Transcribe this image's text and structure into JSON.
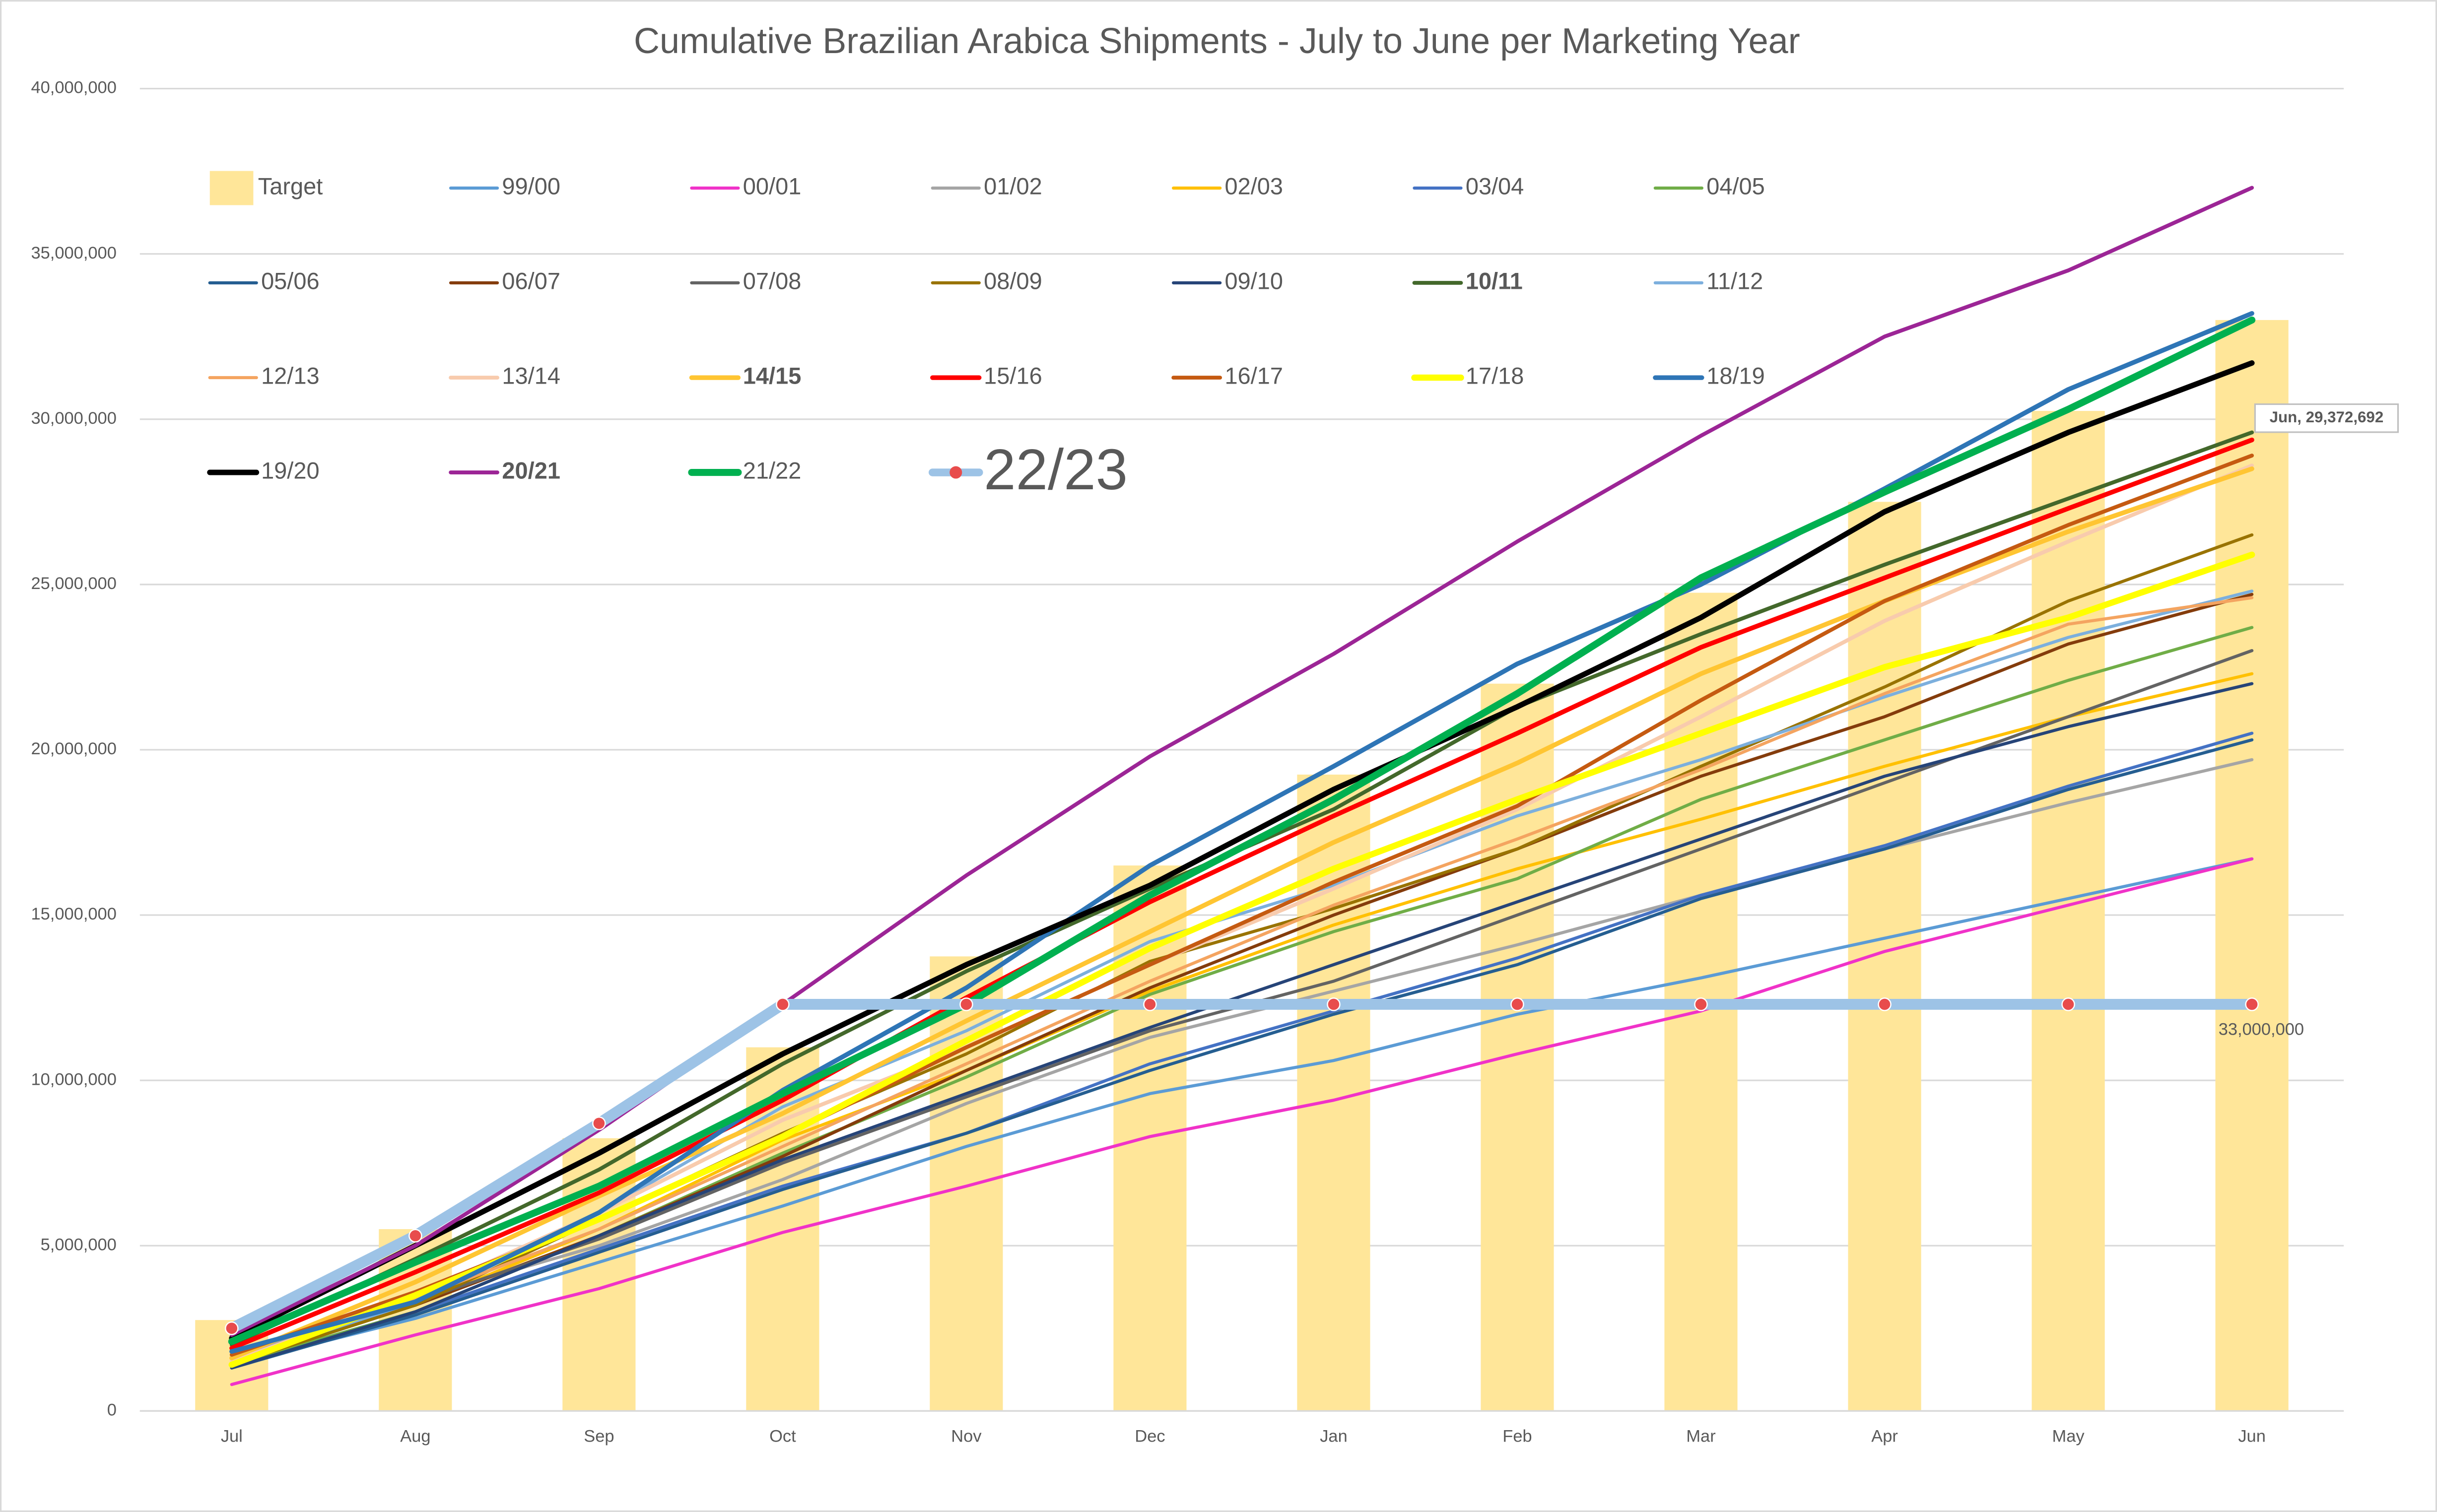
{
  "chart_data": {
    "type": "line",
    "title": "Cumulative Brazilian Arabica Shipments - July to June per Marketing Year",
    "categories": [
      "Jul",
      "Aug",
      "Sep",
      "Oct",
      "Nov",
      "Dec",
      "Jan",
      "Feb",
      "Mar",
      "Apr",
      "May",
      "Jun"
    ],
    "ylim": [
      0,
      40000000
    ],
    "yticks": [
      0,
      {
        "value": 5000000,
        "label": "5,000,000"
      },
      {
        "value": 10000000,
        "label": "10,000,000"
      },
      {
        "value": 15000000,
        "label": "15,000,000"
      },
      {
        "value": 20000000,
        "label": "20,000,000"
      },
      {
        "value": 25000000,
        "label": "25,000,000"
      },
      {
        "value": 30000000,
        "label": "30,000,000"
      },
      {
        "value": 35000000,
        "label": "35,000,000"
      },
      {
        "value": 40000000,
        "label": "40,000,000"
      }
    ],
    "grid": true,
    "bars": {
      "name": "Target",
      "color": "#ffe699",
      "values": [
        2750000,
        5500000,
        8250000,
        11000000,
        13750000,
        16500000,
        19250000,
        22000000,
        24750000,
        27500000,
        30250000,
        33000000
      ],
      "value_labels": [
        null,
        null,
        null,
        null,
        null,
        null,
        null,
        null,
        null,
        null,
        null,
        "33,000,000"
      ]
    },
    "series": [
      {
        "name": "99/00",
        "color": "#5b9bd5",
        "width": 2,
        "values": [
          1400000,
          2800000,
          4500000,
          6200000,
          8000000,
          9600000,
          10600000,
          12000000,
          13100000,
          14300000,
          15500000,
          16700000
        ]
      },
      {
        "name": "00/01",
        "color": "#f032c8",
        "width": 2,
        "values": [
          800000,
          2300000,
          3700000,
          5400000,
          6800000,
          8300000,
          9400000,
          10800000,
          12100000,
          13900000,
          15300000,
          16700000
        ]
      },
      {
        "name": "01/02",
        "color": "#a5a5a5",
        "width": 2,
        "values": [
          1600000,
          3400000,
          5000000,
          7000000,
          9300000,
          11300000,
          12700000,
          14100000,
          15600000,
          17000000,
          18400000,
          19700000
        ]
      },
      {
        "name": "02/03",
        "color": "#ffc000",
        "width": 2,
        "values": [
          1500000,
          3200000,
          5500000,
          8200000,
          10300000,
          12700000,
          14700000,
          16400000,
          17900000,
          19500000,
          21000000,
          22300000
        ]
      },
      {
        "name": "03/04",
        "color": "#4472c4",
        "width": 2,
        "values": [
          1400000,
          3000000,
          4900000,
          6800000,
          8400000,
          10500000,
          12100000,
          13700000,
          15600000,
          17100000,
          18900000,
          20500000
        ]
      },
      {
        "name": "04/05",
        "color": "#70ad47",
        "width": 2,
        "values": [
          1400000,
          3000000,
          5300000,
          7800000,
          10100000,
          12600000,
          14500000,
          16100000,
          18500000,
          20300000,
          22100000,
          23700000
        ]
      },
      {
        "name": "05/06",
        "color": "#255e91",
        "width": 2,
        "values": [
          1300000,
          2900000,
          4800000,
          6700000,
          8400000,
          10300000,
          12000000,
          13500000,
          15500000,
          17000000,
          18800000,
          20300000
        ]
      },
      {
        "name": "06/07",
        "color": "#843c0c",
        "width": 2,
        "values": [
          1500000,
          3200000,
          5300000,
          7700000,
          10300000,
          12800000,
          15000000,
          17000000,
          19200000,
          21000000,
          23200000,
          24700000
        ]
      },
      {
        "name": "07/08",
        "color": "#636363",
        "width": 2,
        "values": [
          1500000,
          3300000,
          5200000,
          7500000,
          9500000,
          11500000,
          13000000,
          15000000,
          17000000,
          19000000,
          21000000,
          23000000
        ]
      },
      {
        "name": "08/09",
        "color": "#997300",
        "width": 2,
        "values": [
          1400000,
          3200000,
          5800000,
          8400000,
          10800000,
          13600000,
          15200000,
          17000000,
          19500000,
          21900000,
          24500000,
          26500000
        ]
      },
      {
        "name": "09/10",
        "color": "#264478",
        "width": 2,
        "values": [
          1300000,
          3000000,
          5300000,
          7600000,
          9600000,
          11600000,
          13500000,
          15400000,
          17300000,
          19200000,
          20700000,
          22000000
        ]
      },
      {
        "name": "10/11",
        "color": "#43682b",
        "width": 2.5,
        "bold": true,
        "values": [
          2000000,
          4600000,
          7300000,
          10500000,
          13300000,
          15800000,
          18200000,
          21300000,
          23500000,
          25600000,
          27600000,
          29600000
        ]
      },
      {
        "name": "11/12",
        "color": "#7cafdd",
        "width": 2,
        "values": [
          1500000,
          3300000,
          6000000,
          9200000,
          11500000,
          14200000,
          15900000,
          18000000,
          19700000,
          21600000,
          23400000,
          24800000
        ]
      },
      {
        "name": "12/13",
        "color": "#f4a460",
        "width": 2,
        "values": [
          1500000,
          3400000,
          5500000,
          8000000,
          10500000,
          13000000,
          15300000,
          17300000,
          19400000,
          21700000,
          23800000,
          24600000
        ]
      },
      {
        "name": "13/14",
        "color": "#f8cbad",
        "width": 2.5,
        "values": [
          1500000,
          3500000,
          6000000,
          8800000,
          11000000,
          13500000,
          15800000,
          18200000,
          21000000,
          23900000,
          26300000,
          28600000
        ]
      },
      {
        "name": "14/15",
        "color": "#ffc532",
        "width": 3,
        "bold": true,
        "values": [
          1600000,
          3900000,
          6500000,
          9000000,
          11800000,
          14500000,
          17200000,
          19600000,
          22300000,
          24500000,
          26600000,
          28500000
        ]
      },
      {
        "name": "15/16",
        "color": "#ff0000",
        "width": 3,
        "values": [
          1900000,
          4200000,
          6600000,
          9400000,
          12500000,
          15400000,
          18000000,
          20500000,
          23100000,
          25200000,
          27300000,
          29372692
        ],
        "value_labels": [
          null,
          null,
          null,
          null,
          null,
          null,
          null,
          null,
          null,
          null,
          null,
          "Jun, 29,372,692"
        ]
      },
      {
        "name": "16/17",
        "color": "#c55a11",
        "width": 2.5,
        "values": [
          1700000,
          3600000,
          5800000,
          8300000,
          11000000,
          13500000,
          16000000,
          18300000,
          21500000,
          24500000,
          26800000,
          28900000
        ]
      },
      {
        "name": "17/18",
        "color": "#ffff00",
        "width": 4,
        "values": [
          1400000,
          3500000,
          5800000,
          8300000,
          11200000,
          14000000,
          16400000,
          18500000,
          20500000,
          22500000,
          24000000,
          25900000
        ]
      },
      {
        "name": "18/19",
        "color": "#2e75b6",
        "width": 3,
        "values": [
          1800000,
          3300000,
          6000000,
          9700000,
          12800000,
          16500000,
          19500000,
          22600000,
          25000000,
          27900000,
          30900000,
          33200000
        ]
      },
      {
        "name": "19/20",
        "color": "#000000",
        "width": 3.5,
        "values": [
          2200000,
          5000000,
          7800000,
          10800000,
          13500000,
          15900000,
          18800000,
          21300000,
          24000000,
          27200000,
          29600000,
          31700000
        ]
      },
      {
        "name": "20/21",
        "color": "#9c2596",
        "width": 2.5,
        "bold": true,
        "values": [
          2300000,
          5000000,
          8500000,
          12300000,
          16200000,
          19800000,
          22900000,
          26300000,
          29500000,
          32500000,
          34500000,
          37000000
        ]
      },
      {
        "name": "21/22",
        "color": "#00b050",
        "width": 4.5,
        "values": [
          2100000,
          4500000,
          6800000,
          9600000,
          12300000,
          15600000,
          18500000,
          21700000,
          25200000,
          27800000,
          30300000,
          33000000
        ]
      },
      {
        "name": "22/23",
        "color": "#9dc3e6",
        "width": 7,
        "marker": true,
        "values": [
          2500000,
          5300000,
          8700000,
          12300000,
          12300000,
          12300000,
          12300000,
          12300000,
          12300000,
          12300000,
          12300000,
          12300000
        ]
      }
    ]
  }
}
